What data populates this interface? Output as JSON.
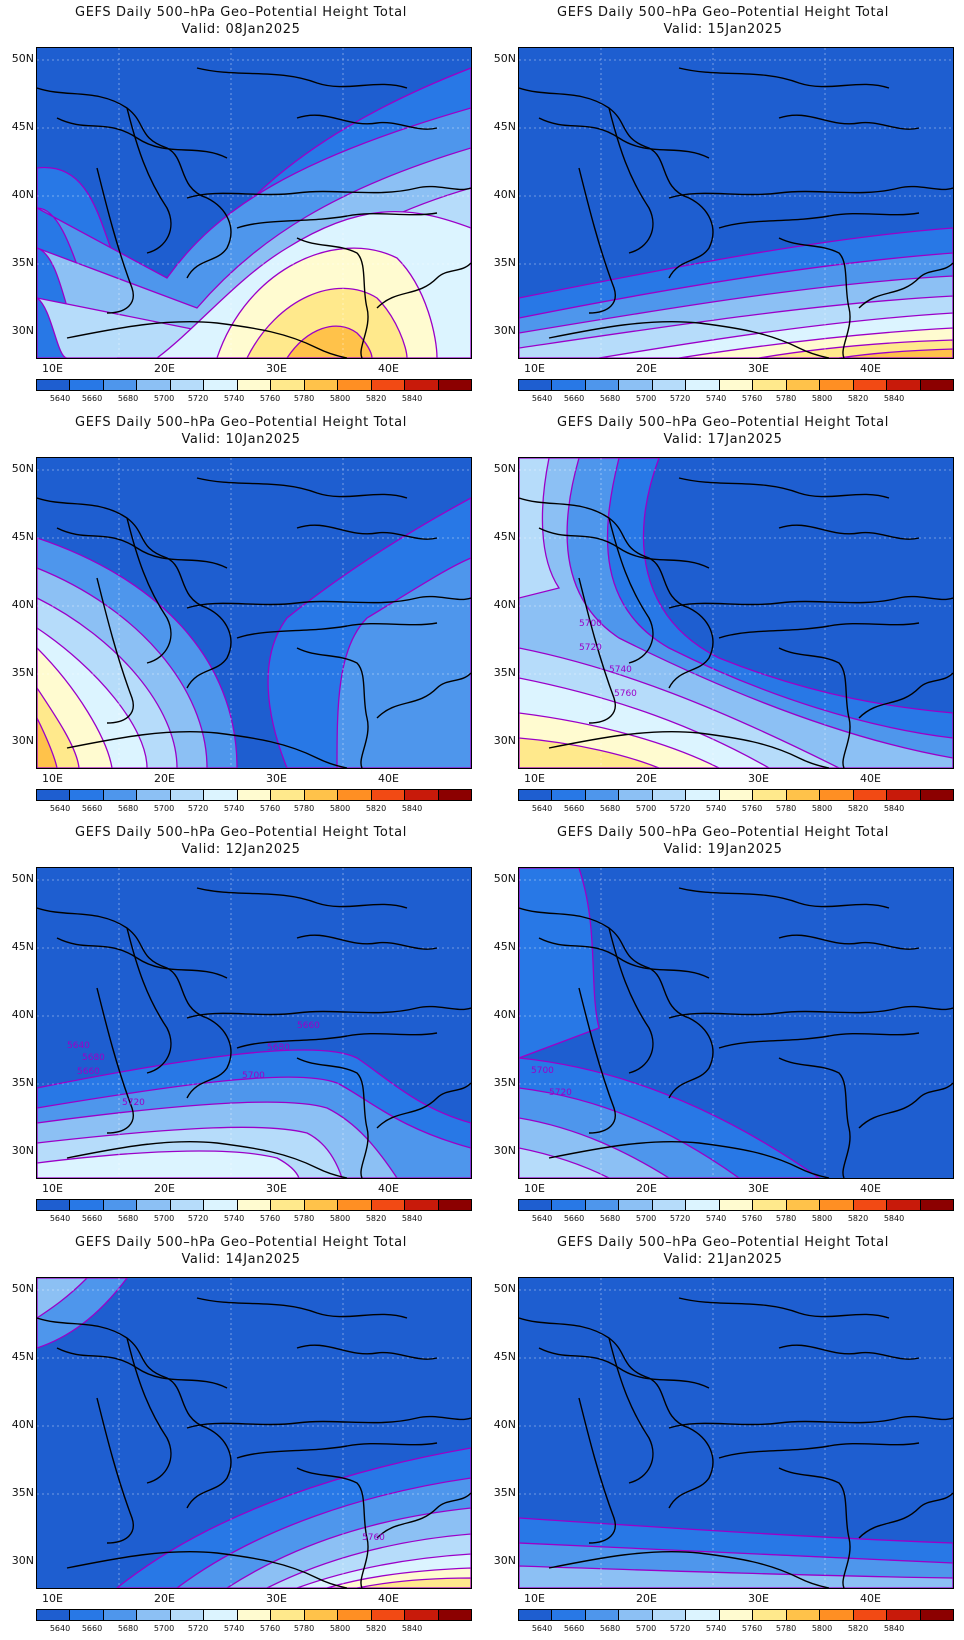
{
  "title_prefix": "GEFS Daily 500-hPa Geo-Potential Height Total",
  "panels": [
    {
      "id": "p0",
      "title": "GEFS Daily 500–hPa Geo–Potential Height Total",
      "valid": "Valid: 08Jan2025",
      "col": 0,
      "row": 0,
      "trend": "ridge-southeast"
    },
    {
      "id": "p1",
      "title": "GEFS Daily 500–hPa Geo–Potential Height Total",
      "valid": "Valid: 15Jan2025",
      "col": 1,
      "row": 0,
      "trend": "south-gradient"
    },
    {
      "id": "p2",
      "title": "GEFS Daily 500–hPa Geo–Potential Height Total",
      "valid": "Valid: 10Jan2025",
      "col": 0,
      "row": 1,
      "trend": "ridge-southwest"
    },
    {
      "id": "p3",
      "title": "GEFS Daily 500–hPa Geo–Potential Height Total",
      "valid": "Valid: 17Jan2025",
      "col": 1,
      "row": 1,
      "trend": "southwest-gradient",
      "labels": [
        "5700",
        "5720",
        "5740",
        "5760"
      ]
    },
    {
      "id": "p4",
      "title": "GEFS Daily 500–hPa Geo–Potential Height Total",
      "valid": "Valid: 12Jan2025",
      "col": 0,
      "row": 2,
      "trend": "south-gradient-weak",
      "labels": [
        "5660",
        "5640",
        "5680",
        "5660",
        "5680",
        "5700",
        "5720"
      ]
    },
    {
      "id": "p5",
      "title": "GEFS Daily 500–hPa Geo–Potential Height Total",
      "valid": "Valid: 19Jan2025",
      "col": 1,
      "row": 2,
      "trend": "southwest-weak",
      "labels": [
        "5700",
        "5720"
      ]
    },
    {
      "id": "p6",
      "title": "GEFS Daily 500–hPa Geo–Potential Height Total",
      "valid": "Valid: 14Jan2025",
      "col": 0,
      "row": 3,
      "trend": "south-gradient",
      "labels": [
        "5760"
      ]
    },
    {
      "id": "p7",
      "title": "GEFS Daily 500–hPa Geo–Potential Height Total",
      "valid": "Valid: 21Jan2025",
      "col": 1,
      "row": 3,
      "trend": "low-all"
    }
  ],
  "y_axis": [
    "50N",
    "45N",
    "40N",
    "35N",
    "30N"
  ],
  "x_axis": [
    "10E",
    "20E",
    "30E",
    "40E"
  ],
  "colorbar": {
    "colors": [
      "#1e5ed0",
      "#2878e6",
      "#4e96ec",
      "#8cc0f4",
      "#b6dcfa",
      "#dcf4ff",
      "#fffbd0",
      "#ffe98c",
      "#ffc24a",
      "#ff8f23",
      "#f24a14",
      "#c81a0a",
      "#8c0000"
    ],
    "labels": [
      "5640",
      "5660",
      "5680",
      "5700",
      "5720",
      "5740",
      "5760",
      "5780",
      "5800",
      "5820",
      "5840"
    ]
  },
  "contour_color": "#9b00c8",
  "coast_color": "#000000"
}
